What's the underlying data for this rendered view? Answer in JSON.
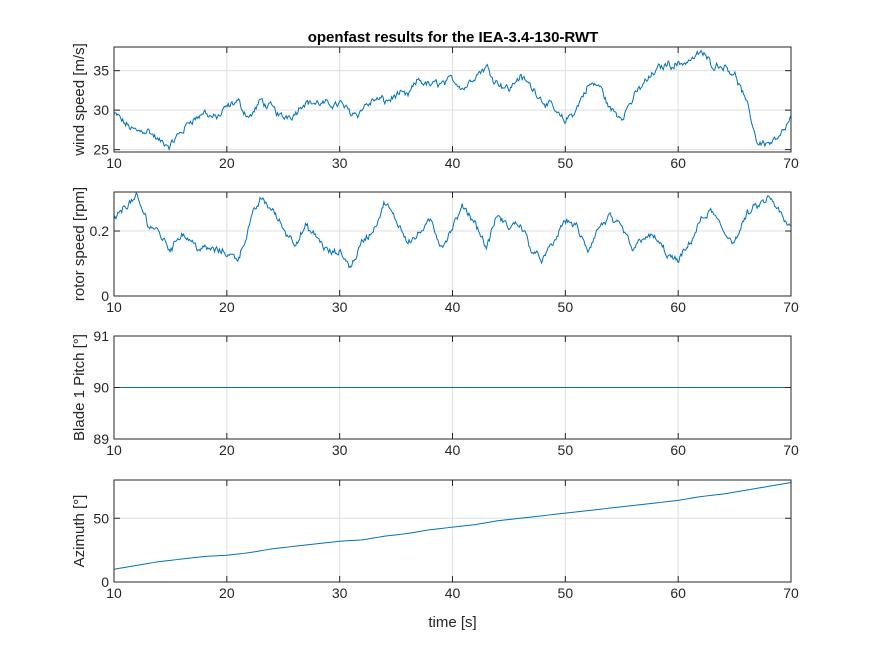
{
  "title": "openfast results for the IEA-3.4-130-RWT",
  "colors": {
    "series": "#0072bd",
    "grid": "#dfdfdf",
    "axis": "#262626",
    "background": "#ffffff"
  },
  "chart_data": [
    {
      "type": "line",
      "title": "openfast results for the IEA-3.4-130-RWT",
      "xlabel": "",
      "ylabel": "wind speed [m/s]",
      "xlim": [
        10,
        70
      ],
      "ylim": [
        24.7,
        38
      ],
      "xticks": [
        "10",
        "20",
        "30",
        "40",
        "50",
        "60",
        "70"
      ],
      "yticks": [
        "25",
        "30",
        "35"
      ],
      "grid": true,
      "noisy": true,
      "x": [
        10,
        11,
        12,
        13,
        14,
        15,
        16,
        17,
        18,
        19,
        20,
        21,
        22,
        23,
        24,
        25,
        26,
        27,
        28,
        29,
        30,
        31,
        32,
        33,
        34,
        35,
        36,
        37,
        38,
        39,
        40,
        41,
        42,
        43,
        44,
        45,
        46,
        47,
        48,
        49,
        50,
        51,
        52,
        53,
        54,
        55,
        56,
        57,
        58,
        59,
        60,
        61,
        62,
        63,
        64,
        65,
        66,
        67,
        68,
        69,
        70
      ],
      "y": [
        29.5,
        28.0,
        27.3,
        28.0,
        26.0,
        25.0,
        27.0,
        29.0,
        29.5,
        29.0,
        30.0,
        30.5,
        29.0,
        31.0,
        30.0,
        29.0,
        30.0,
        31.5,
        31.0,
        30.5,
        31.0,
        30.0,
        30.5,
        31.5,
        31.0,
        32.0,
        31.5,
        33.5,
        33.0,
        33.5,
        34.0,
        33.0,
        34.5,
        35.5,
        34.0,
        33.0,
        34.5,
        33.0,
        31.5,
        30.0,
        28.5,
        30.0,
        33.0,
        33.0,
        30.0,
        29.0,
        31.5,
        33.5,
        35.0,
        36.0,
        36.0,
        36.5,
        37.5,
        36.0,
        36.0,
        35.0,
        31.0,
        26.0,
        26.0,
        27.0,
        29.0
      ]
    },
    {
      "type": "line",
      "xlabel": "",
      "ylabel": "rotor speed [rpm]",
      "xlim": [
        10,
        70
      ],
      "ylim": [
        0,
        0.32
      ],
      "xticks": [
        "10",
        "20",
        "30",
        "40",
        "50",
        "60",
        "70"
      ],
      "yticks": [
        "0",
        "0.2"
      ],
      "grid": true,
      "noisy": true,
      "x": [
        10,
        11,
        12,
        13,
        14,
        15,
        16,
        17,
        18,
        19,
        20,
        21,
        22,
        23,
        24,
        25,
        26,
        27,
        28,
        29,
        30,
        31,
        32,
        33,
        34,
        35,
        36,
        37,
        38,
        39,
        40,
        41,
        42,
        43,
        44,
        45,
        46,
        47,
        48,
        49,
        50,
        51,
        52,
        53,
        54,
        55,
        56,
        57,
        58,
        59,
        60,
        61,
        62,
        63,
        64,
        65,
        66,
        67,
        68,
        69,
        70
      ],
      "y": [
        0.23,
        0.28,
        0.3,
        0.22,
        0.2,
        0.15,
        0.2,
        0.17,
        0.15,
        0.14,
        0.13,
        0.12,
        0.22,
        0.3,
        0.27,
        0.21,
        0.17,
        0.21,
        0.17,
        0.13,
        0.12,
        0.09,
        0.17,
        0.2,
        0.28,
        0.22,
        0.18,
        0.2,
        0.23,
        0.15,
        0.2,
        0.26,
        0.22,
        0.15,
        0.24,
        0.2,
        0.22,
        0.15,
        0.12,
        0.16,
        0.24,
        0.21,
        0.13,
        0.2,
        0.23,
        0.2,
        0.14,
        0.2,
        0.18,
        0.13,
        0.1,
        0.15,
        0.23,
        0.25,
        0.2,
        0.17,
        0.24,
        0.27,
        0.3,
        0.24,
        0.2
      ]
    },
    {
      "type": "line",
      "xlabel": "",
      "ylabel": "Blade 1 Pitch [°]",
      "xlim": [
        10,
        70
      ],
      "ylim": [
        89,
        91
      ],
      "xticks": [
        "10",
        "20",
        "30",
        "40",
        "50",
        "60",
        "70"
      ],
      "yticks": [
        "89",
        "90",
        "91"
      ],
      "grid": true,
      "noisy": false,
      "x": [
        10,
        70
      ],
      "y": [
        90,
        90
      ]
    },
    {
      "type": "line",
      "xlabel": "time [s]",
      "ylabel": "Azimuth [°]",
      "xlim": [
        10,
        70
      ],
      "ylim": [
        0,
        80
      ],
      "xticks": [
        "10",
        "20",
        "30",
        "40",
        "50",
        "60",
        "70"
      ],
      "yticks": [
        "0",
        "50"
      ],
      "grid": true,
      "noisy": false,
      "x": [
        10,
        12,
        14,
        16,
        18,
        20,
        22,
        24,
        26,
        28,
        30,
        32,
        34,
        36,
        38,
        40,
        42,
        44,
        46,
        48,
        50,
        52,
        54,
        56,
        58,
        60,
        62,
        64,
        66,
        68,
        70
      ],
      "y": [
        10,
        13,
        16,
        18,
        20,
        21,
        23,
        26,
        28,
        30,
        32,
        33,
        36,
        38,
        41,
        43,
        45,
        48,
        50,
        52,
        54,
        56,
        58,
        60,
        62,
        64,
        67,
        69,
        72,
        75,
        78
      ]
    }
  ]
}
